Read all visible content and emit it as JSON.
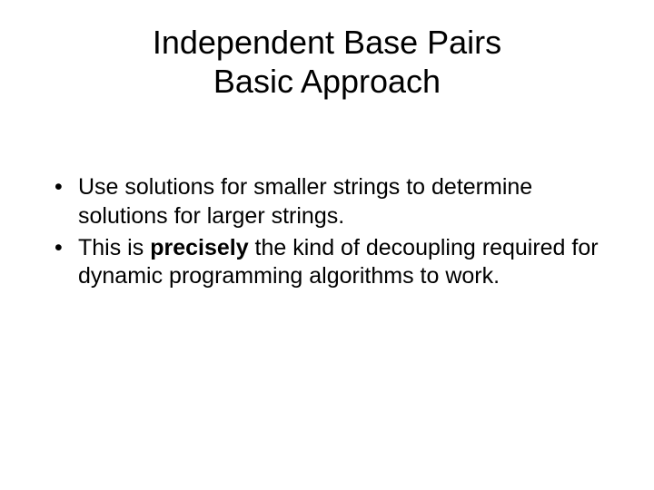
{
  "title": {
    "line1": "Independent Base Pairs",
    "line2": "Basic Approach"
  },
  "bullets": [
    {
      "pre": "Use solutions for smaller strings to determine solutions for larger strings.",
      "bold": "",
      "post": ""
    },
    {
      "pre": "This is ",
      "bold": "precisely",
      "post": " the kind of decoupling required for dynamic programming algorithms to work."
    }
  ],
  "style": {
    "background_color": "#ffffff",
    "text_color": "#000000",
    "title_fontsize": 36,
    "body_fontsize": 25,
    "font_family": "Arial"
  }
}
